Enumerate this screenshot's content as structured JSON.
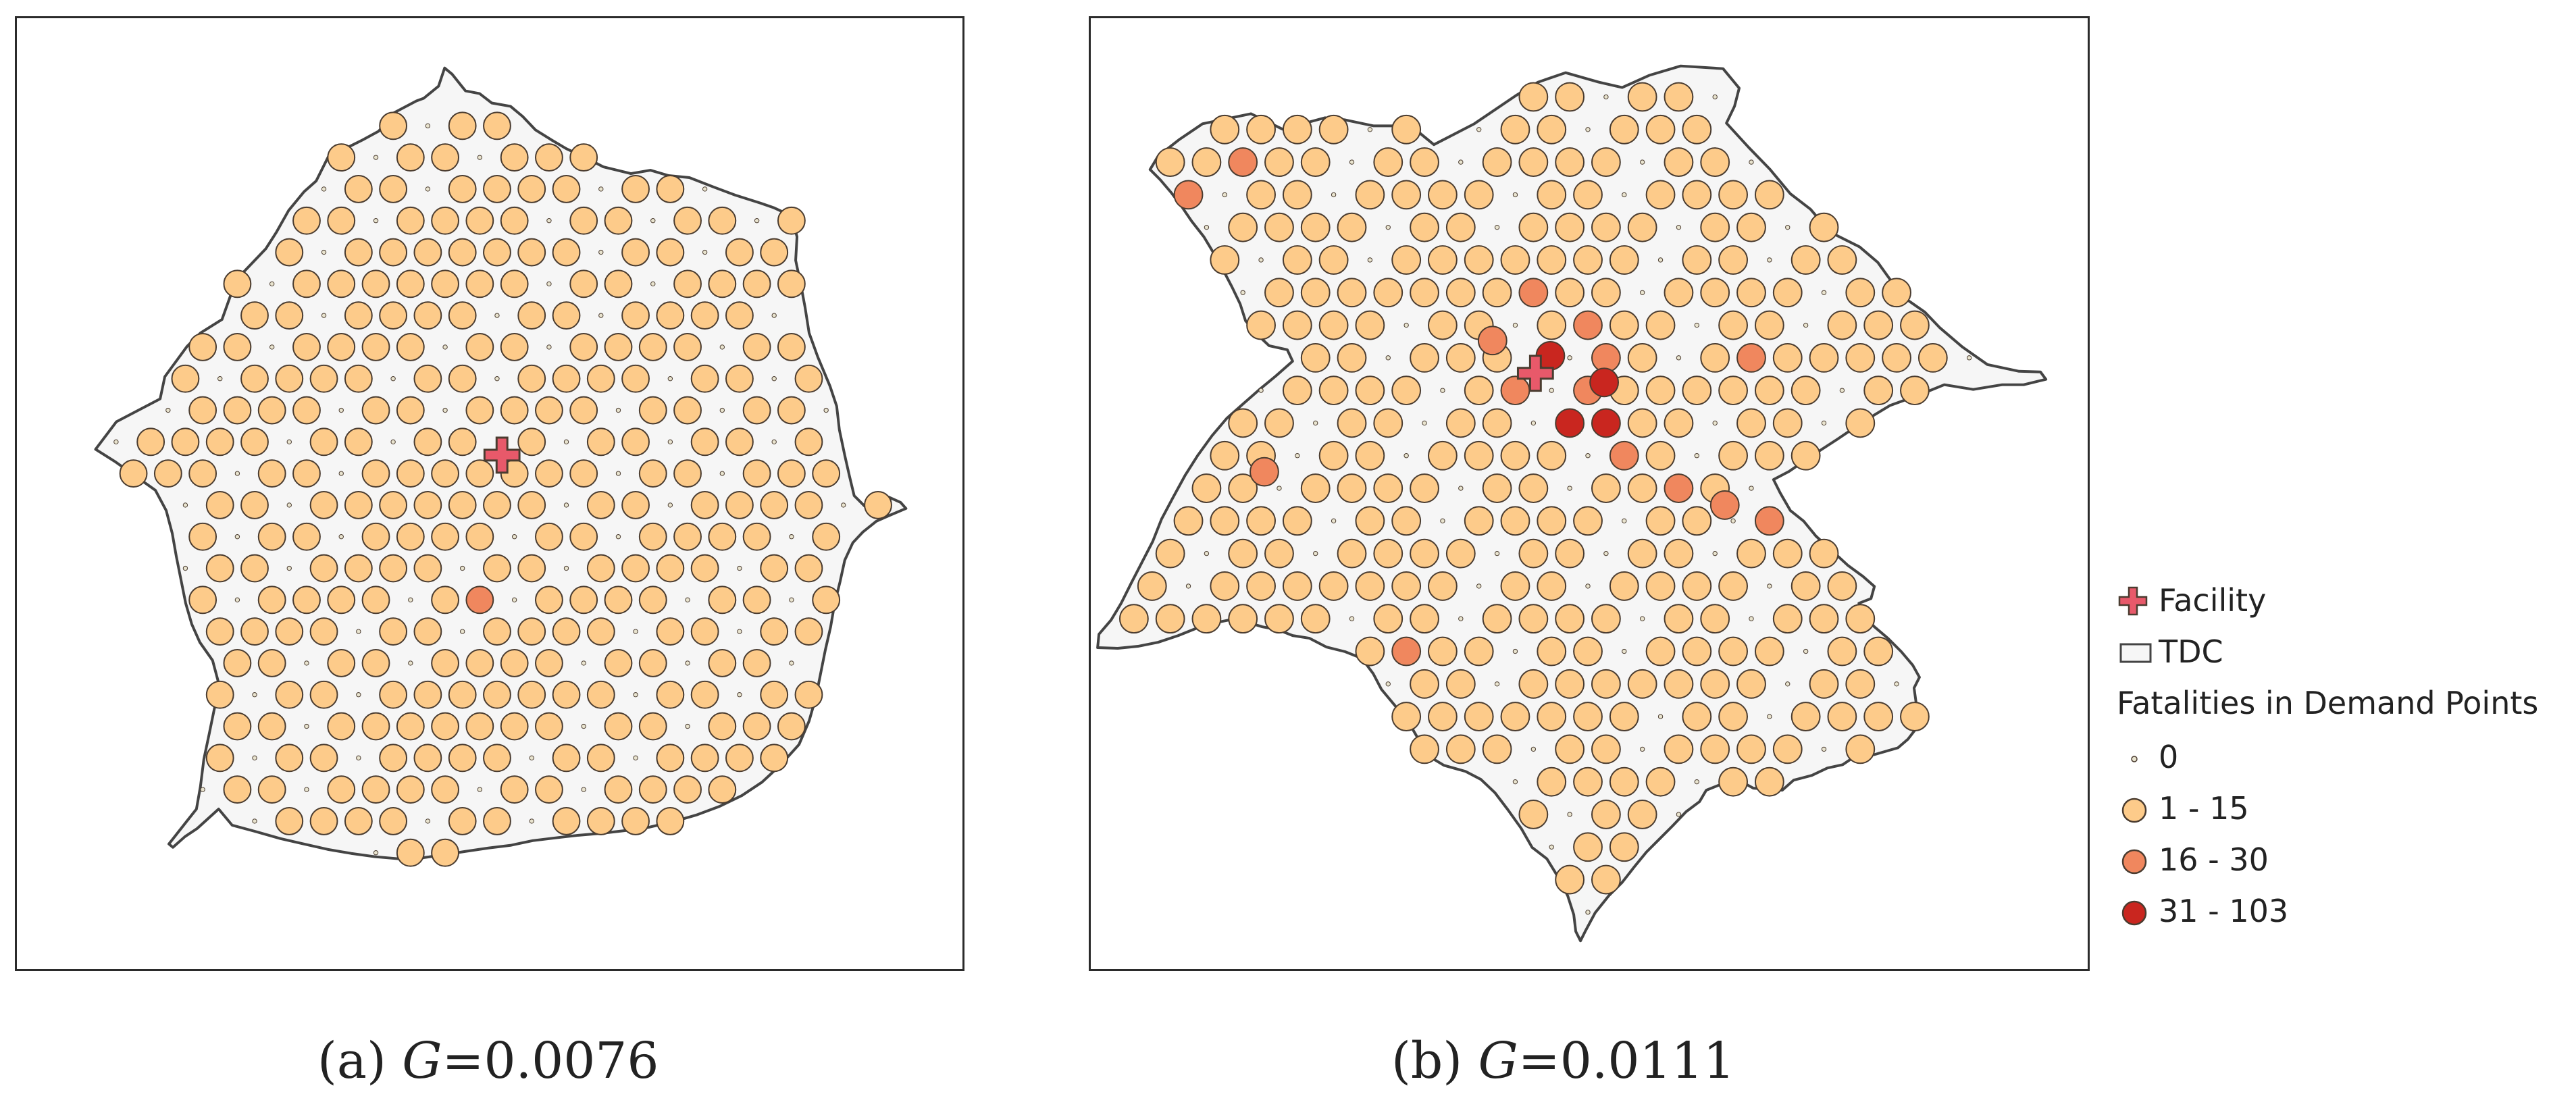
{
  "colors": {
    "area_fill": "#f6f6f6",
    "boundary": "#444444",
    "class_0": "#e9e4cf",
    "class_1_15": "#fdcb8a",
    "class_16_30": "#f0875e",
    "class_31_103": "#c9261f",
    "facility": "#e8596a",
    "mark_stroke": "#4a3c30"
  },
  "panels": [
    {
      "id": "a",
      "caption_prefix": "(a) ",
      "caption_var": "G",
      "caption_value": "=0.0076",
      "facility": [
        0.513,
        0.4595
      ],
      "high_points": [
        [
          0.49,
          0.604
        ]
      ],
      "severe_points": []
    },
    {
      "id": "b",
      "caption_prefix": "(b) ",
      "caption_var": "G",
      "caption_value": "=0.0111",
      "facility": [
        0.446,
        0.3734
      ],
      "high_points": [
        [
          0.437,
          0.304
        ],
        [
          0.403,
          0.339
        ],
        [
          0.494,
          0.339
        ],
        [
          0.417,
          0.387
        ],
        [
          0.497,
          0.384
        ],
        [
          0.53,
          0.463
        ],
        [
          0.589,
          0.483
        ],
        [
          0.636,
          0.512
        ],
        [
          0.694,
          0.537
        ],
        [
          0.174,
          0.477
        ],
        [
          0.313,
          0.682
        ],
        [
          0.095,
          0.186
        ],
        [
          0.146,
          0.155
        ],
        [
          0.665,
          0.349
        ],
        [
          0.533,
          0.357
        ]
      ],
      "severe_points": [
        [
          0.461,
          0.355
        ],
        [
          0.515,
          0.383
        ],
        [
          0.475,
          0.418
        ],
        [
          0.515,
          0.441
        ]
      ]
    }
  ],
  "legend": {
    "facility_label": "Facility",
    "area_label": "TDC",
    "title": "Fatalities in Demand Points",
    "classes": [
      {
        "label": "0",
        "color": "#e9e4cf",
        "symbol": "tiny"
      },
      {
        "label": "1 - 15",
        "color": "#fdcb8a",
        "symbol": "circle"
      },
      {
        "label": "16 - 30",
        "color": "#f0875e",
        "symbol": "circle"
      },
      {
        "label": "31 - 103",
        "color": "#c9261f",
        "symbol": "circle"
      }
    ]
  }
}
